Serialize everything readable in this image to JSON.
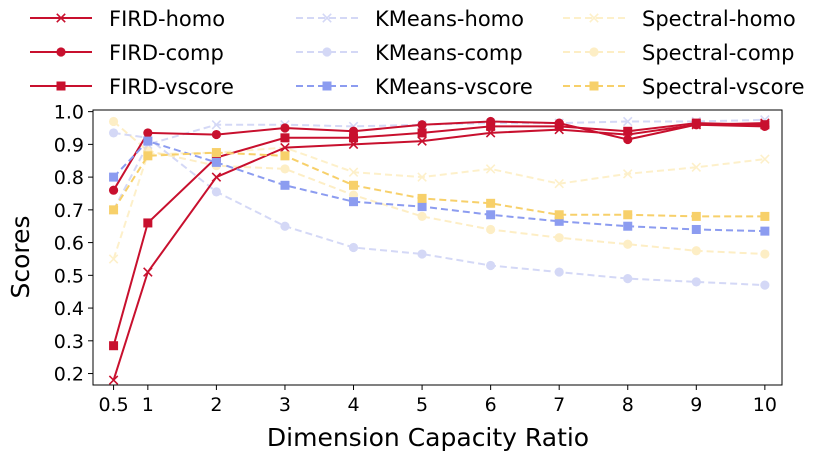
{
  "chart_data": {
    "type": "line",
    "title": "",
    "xlabel": "Dimension Capacity Ratio",
    "ylabel": "Scores",
    "x": [
      0.5,
      1,
      2,
      3,
      4,
      5,
      6,
      7,
      8,
      9,
      10
    ],
    "xticks": [
      "0.5",
      "1",
      "2",
      "3",
      "4",
      "5",
      "6",
      "7",
      "8",
      "9",
      "10"
    ],
    "yticks": [
      "0.2",
      "0.3",
      "0.4",
      "0.5",
      "0.6",
      "0.7",
      "0.8",
      "0.9",
      "1.0"
    ],
    "xlim": [
      0.2,
      10.25
    ],
    "ylim": [
      0.165,
      1.005
    ],
    "grid": false,
    "legend_placement": "top, 3 columns",
    "series": [
      {
        "name": "FIRD-homo",
        "color": "#c8102e",
        "style": "solid",
        "marker": "x",
        "opacity": 1,
        "values": [
          0.18,
          0.51,
          0.8,
          0.89,
          0.9,
          0.91,
          0.935,
          0.945,
          0.93,
          0.96,
          0.965
        ]
      },
      {
        "name": "FIRD-comp",
        "color": "#c8102e",
        "style": "solid",
        "marker": "circle",
        "opacity": 1,
        "values": [
          0.76,
          0.935,
          0.93,
          0.95,
          0.94,
          0.96,
          0.97,
          0.965,
          0.915,
          0.96,
          0.955
        ]
      },
      {
        "name": "FIRD-vscore",
        "color": "#c8102e",
        "style": "solid",
        "marker": "square",
        "opacity": 1,
        "values": [
          0.285,
          0.66,
          0.86,
          0.92,
          0.92,
          0.935,
          0.955,
          0.955,
          0.94,
          0.965,
          0.96
        ]
      },
      {
        "name": "KMeans-homo",
        "color": "#aab3ee",
        "style": "dashed",
        "marker": "x",
        "opacity": 0.5,
        "values": [
          0.7,
          0.9,
          0.96,
          0.96,
          0.955,
          0.96,
          0.965,
          0.965,
          0.97,
          0.97,
          0.975
        ]
      },
      {
        "name": "KMeans-comp",
        "color": "#aab3ee",
        "style": "dashed",
        "marker": "circle",
        "opacity": 0.5,
        "values": [
          0.935,
          0.92,
          0.755,
          0.65,
          0.585,
          0.565,
          0.53,
          0.51,
          0.49,
          0.48,
          0.47
        ]
      },
      {
        "name": "KMeans-vscore",
        "color": "#8c9cf0",
        "style": "dashed",
        "marker": "square",
        "opacity": 1,
        "values": [
          0.8,
          0.91,
          0.845,
          0.775,
          0.725,
          0.71,
          0.685,
          0.665,
          0.65,
          0.64,
          0.635
        ]
      },
      {
        "name": "Spectral-homo",
        "color": "#fde7a8",
        "style": "dashed",
        "marker": "x",
        "opacity": 0.6,
        "values": [
          0.55,
          0.87,
          0.875,
          0.89,
          0.815,
          0.8,
          0.825,
          0.78,
          0.81,
          0.83,
          0.855
        ]
      },
      {
        "name": "Spectral-comp",
        "color": "#fde3a0",
        "style": "dashed",
        "marker": "circle",
        "opacity": 0.6,
        "values": [
          0.97,
          0.88,
          0.835,
          0.825,
          0.745,
          0.68,
          0.64,
          0.615,
          0.595,
          0.575,
          0.565
        ]
      },
      {
        "name": "Spectral-vscore",
        "color": "#f7d06a",
        "style": "dashed",
        "marker": "square",
        "opacity": 1,
        "values": [
          0.7,
          0.865,
          0.875,
          0.865,
          0.775,
          0.735,
          0.72,
          0.685,
          0.685,
          0.68,
          0.68
        ]
      }
    ]
  }
}
